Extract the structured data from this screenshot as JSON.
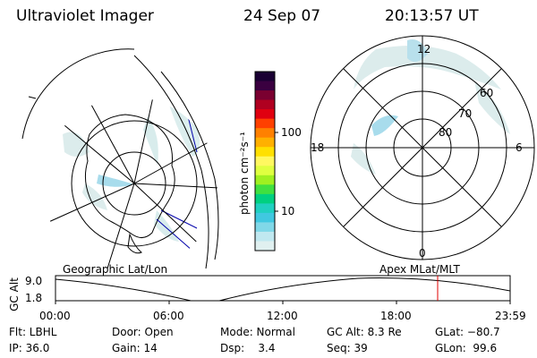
{
  "header": {
    "title": "Ultraviolet Imager",
    "date": "24 Sep 07",
    "time": "20:13:57 UT"
  },
  "colorbar": {
    "unit_label": "photon cm⁻²s⁻¹",
    "ticks": [
      "100",
      "10"
    ],
    "colors": [
      "#1a0033",
      "#3a0040",
      "#7a0030",
      "#b00020",
      "#e00010",
      "#ff4000",
      "#ff8000",
      "#ffb000",
      "#ffe000",
      "#fff860",
      "#e0ff40",
      "#a0f020",
      "#40e040",
      "#00d080",
      "#20d0c0",
      "#40c8e0",
      "#80d8e8",
      "#c0e8f0",
      "#e0f0f0"
    ]
  },
  "left_map": {
    "caption": "Geographic Lat/Lon"
  },
  "right_map": {
    "caption": "Apex MLat/MLT",
    "mlt_labels": [
      "12",
      "18",
      "6",
      "0"
    ],
    "lat_labels": [
      "60",
      "70",
      "80"
    ]
  },
  "timeline": {
    "axis_label": "GC Alt",
    "y_labels": [
      "9.0",
      "1.8"
    ],
    "x_labels": [
      "00:00",
      "06:00",
      "12:00",
      "18:00",
      "23:59"
    ],
    "marker_color": "#e00000"
  },
  "info": {
    "row1": [
      "Flt: LBHL",
      "Door: Open",
      "Mode: Normal",
      "GC Alt: 8.3 Re",
      "GLat: −80.7"
    ],
    "row2": [
      "IP: 36.0",
      "Gain: 14",
      "Dsp:    3.4",
      "Seq: 39",
      "GLon:  99.6"
    ]
  }
}
